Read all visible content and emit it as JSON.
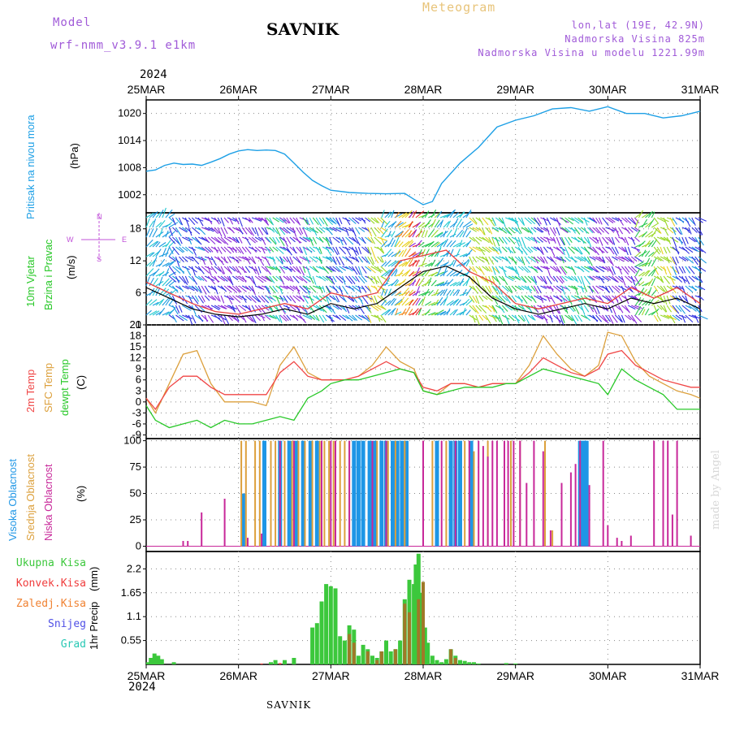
{
  "header": {
    "model_label": "Model",
    "model_name": "wrf-nmm_v3.9.1 e1km",
    "title": "SAVNIK",
    "meteogram_label": "Meteogram",
    "lonlat": "lon,lat (19E, 42.9N)",
    "elevation": "Nadmorska Visina 825m",
    "model_elevation": "Nadmorska Visina u modelu 1221.99m",
    "year_top": "2024",
    "year_bottom": "2024",
    "footer_station": "SAVNIK",
    "watermark": "made by Angel"
  },
  "colors": {
    "pressure": "#1ea0e6",
    "temp2m": "#f04646",
    "sfc_temp": "#dca03c",
    "dewpoint": "#28c828",
    "high_cloud": "#1e96e6",
    "mid_cloud": "#dca03c",
    "low_cloud": "#c8289a",
    "total_precip": "#3cc83c",
    "convective": "#f03c3c",
    "frozen": "#f08232",
    "snow": "#5050e6",
    "graupel": "#28c8b4"
  },
  "chart_data": [
    {
      "type": "line",
      "panel": "pressure",
      "ylabel_lines": [
        "Pritisak na nivou mora"
      ],
      "unit": "(hPa)",
      "x_ticks": [
        "25MAR",
        "26MAR",
        "27MAR",
        "28MAR",
        "29MAR",
        "30MAR",
        "31MAR"
      ],
      "ylim": [
        998,
        1023
      ],
      "yticks": [
        1002,
        1008,
        1014,
        1020
      ],
      "x_days": [
        0,
        0.1,
        0.2,
        0.3,
        0.4,
        0.5,
        0.6,
        0.7,
        0.8,
        0.9,
        1.0,
        1.1,
        1.2,
        1.3,
        1.4,
        1.5,
        1.6,
        1.7,
        1.8,
        1.9,
        2.0,
        2.2,
        2.4,
        2.6,
        2.8,
        2.9,
        3.0,
        3.1,
        3.2,
        3.4,
        3.6,
        3.8,
        4.0,
        4.2,
        4.4,
        4.6,
        4.8,
        5.0,
        5.2,
        5.4,
        5.6,
        5.8,
        6.0
      ],
      "series": [
        {
          "values": [
            1007.2,
            1007.5,
            1008.5,
            1009.0,
            1008.7,
            1008.8,
            1008.5,
            1009.2,
            1010.0,
            1011.0,
            1011.7,
            1012.0,
            1011.8,
            1011.9,
            1011.8,
            1011.0,
            1009.0,
            1007.0,
            1005.2,
            1004.0,
            1003.0,
            1002.5,
            1002.3,
            1002.2,
            1002.3,
            1001.0,
            999.8,
            1000.5,
            1004.5,
            1009.0,
            1012.5,
            1017.0,
            1018.5,
            1019.5,
            1021.0,
            1021.3,
            1020.5,
            1021.5,
            1020.0,
            1020.0,
            1019.0,
            1019.5,
            1020.5
          ]
        }
      ]
    },
    {
      "type": "line",
      "panel": "wind",
      "ylabel_lines": [
        "10m Vjetar",
        "Brzina i Pravac"
      ],
      "unit": "(m/s)",
      "compass": [
        "N",
        "S",
        "W",
        "E"
      ],
      "ylim": [
        0,
        21
      ],
      "yticks": [
        0,
        6,
        12,
        18
      ],
      "x_days": [
        0,
        0.25,
        0.5,
        0.75,
        1.0,
        1.25,
        1.5,
        1.75,
        2.0,
        2.25,
        2.5,
        2.75,
        3.0,
        3.25,
        3.5,
        3.75,
        4.0,
        4.25,
        4.5,
        4.75,
        5.0,
        5.25,
        5.5,
        5.75,
        6.0
      ],
      "series": [
        {
          "name": "speed",
          "values": [
            7,
            5,
            3,
            2,
            1.5,
            2,
            3,
            2,
            4,
            3,
            4,
            7,
            10,
            11,
            9,
            5,
            3,
            2,
            3,
            4,
            3,
            5,
            4,
            5,
            3
          ]
        },
        {
          "name": "gust",
          "values": [
            8,
            6,
            4,
            2.5,
            2,
            3,
            4,
            3,
            6,
            5,
            6,
            12,
            13,
            14,
            10,
            8,
            4,
            3,
            4,
            5,
            4,
            7,
            5,
            7,
            4
          ]
        }
      ]
    },
    {
      "type": "line",
      "panel": "temperature",
      "ylabel_lines": [
        "2m Temp",
        "SFC Temp",
        "dewpt Temp"
      ],
      "unit": "(C)",
      "ylim": [
        -10,
        21
      ],
      "yticks": [
        -9,
        -6,
        -3,
        0,
        3,
        6,
        9,
        12,
        15,
        18,
        21
      ],
      "x_days": [
        0,
        0.1,
        0.25,
        0.4,
        0.55,
        0.7,
        0.85,
        1.0,
        1.15,
        1.3,
        1.45,
        1.6,
        1.75,
        1.9,
        2.0,
        2.15,
        2.3,
        2.45,
        2.6,
        2.75,
        2.9,
        3.0,
        3.15,
        3.3,
        3.45,
        3.6,
        3.75,
        3.9,
        4.0,
        4.15,
        4.3,
        4.45,
        4.6,
        4.75,
        4.9,
        5.0,
        5.15,
        5.3,
        5.45,
        5.6,
        5.75,
        5.9,
        6.0
      ],
      "series": [
        {
          "name": "2m Temp",
          "values": [
            1,
            -2,
            4,
            7,
            7,
            4,
            2,
            2,
            2,
            2,
            8,
            11,
            7,
            6,
            6,
            6,
            7,
            9,
            11,
            9,
            8,
            4,
            3,
            5,
            5,
            4,
            5,
            5,
            5,
            8,
            12,
            10,
            8,
            7,
            9,
            13,
            14,
            10,
            8,
            6,
            5,
            4,
            4
          ]
        },
        {
          "name": "SFC Temp",
          "values": [
            1,
            -3,
            5,
            13,
            14,
            5,
            0,
            0,
            0,
            -1,
            10,
            15,
            8,
            6,
            6,
            6,
            7,
            10,
            15,
            11,
            9,
            3,
            2,
            5,
            5,
            4,
            5,
            5,
            5,
            10,
            18,
            13,
            9,
            7,
            10,
            19,
            18,
            11,
            7,
            5,
            3,
            2,
            1
          ]
        },
        {
          "name": "dewpt Temp",
          "values": [
            -1,
            -5,
            -7,
            -6,
            -5,
            -7,
            -5,
            -6,
            -6,
            -5,
            -4,
            -5,
            1,
            3,
            5,
            6,
            6,
            7,
            8,
            9,
            8,
            3,
            2,
            3,
            4,
            4,
            4,
            5,
            5,
            7,
            9,
            8,
            7,
            6,
            5,
            2,
            9,
            6,
            4,
            2,
            -2,
            -2,
            -2
          ]
        }
      ]
    },
    {
      "type": "bar",
      "panel": "clouds",
      "ylabel_lines": [
        "Visoka Oblacnost",
        "Srednja Oblacnost",
        "Niska Oblacnost"
      ],
      "unit": "(%)",
      "ylim": [
        0,
        100
      ],
      "yticks": [
        0,
        25,
        50,
        75,
        100
      ],
      "series": [
        {
          "name": "Visoka Oblacnost",
          "x_days": [
            0.05,
            1.05,
            1.28,
            1.45,
            1.55,
            1.62,
            1.7,
            1.78,
            1.85,
            2.25,
            2.3,
            2.35,
            2.42,
            2.48,
            2.55,
            2.6,
            2.67,
            2.72,
            2.77,
            2.82,
            3.15,
            3.3,
            3.35,
            3.4,
            3.52,
            4.7,
            4.72,
            4.75,
            4.77
          ],
          "values": [
            0,
            50,
            100,
            100,
            100,
            100,
            100,
            100,
            100,
            100,
            100,
            100,
            100,
            100,
            100,
            100,
            100,
            100,
            100,
            100,
            100,
            100,
            100,
            100,
            100,
            100,
            100,
            100,
            100
          ]
        },
        {
          "name": "Srednja Oblacnost",
          "x_days": [
            1.03,
            1.08,
            1.18,
            1.23,
            1.35,
            1.4,
            1.5,
            1.58,
            1.65,
            1.72,
            1.8,
            1.88,
            1.93,
            1.98,
            2.03,
            2.1,
            2.15,
            2.2,
            2.5,
            2.62,
            2.7,
            2.8,
            3.0,
            3.1,
            3.25,
            3.45,
            3.55,
            3.7,
            3.95,
            4.05,
            4.2,
            4.32,
            4.4
          ],
          "values": [
            100,
            100,
            100,
            100,
            100,
            100,
            100,
            100,
            100,
            100,
            100,
            100,
            100,
            100,
            100,
            100,
            100,
            100,
            100,
            100,
            100,
            100,
            100,
            100,
            100,
            100,
            90,
            100,
            100,
            100,
            5,
            100,
            15
          ]
        },
        {
          "name": "Niska Oblacnost",
          "x_days": [
            0.4,
            0.45,
            0.6,
            0.85,
            1.1,
            1.25,
            1.45,
            1.6,
            1.9,
            2.0,
            2.05,
            2.2,
            2.45,
            2.6,
            3.0,
            3.2,
            3.35,
            3.5,
            3.6,
            3.65,
            3.7,
            3.75,
            3.8,
            3.88,
            3.92,
            3.98,
            4.05,
            4.12,
            4.2,
            4.3,
            4.38,
            4.5,
            4.6,
            4.65,
            4.7,
            4.8,
            4.95,
            5.0,
            5.1,
            5.15,
            5.25,
            5.5,
            5.6,
            5.65,
            5.7,
            5.75,
            5.9,
            6.0
          ],
          "values": [
            5,
            5,
            32,
            45,
            8,
            12,
            100,
            100,
            100,
            100,
            100,
            100,
            100,
            100,
            100,
            100,
            100,
            100,
            100,
            95,
            85,
            100,
            100,
            100,
            100,
            100,
            100,
            60,
            100,
            90,
            15,
            60,
            70,
            78,
            100,
            58,
            100,
            20,
            8,
            5,
            10,
            100,
            100,
            100,
            30,
            100,
            10,
            0
          ]
        }
      ]
    },
    {
      "type": "bar",
      "panel": "precip",
      "ylabel_lines": [
        "1hr Precip"
      ],
      "unit": "(mm)",
      "legend": [
        "Ukupna Kisa",
        "Konvek.Kisa",
        "Zaledj.Kisa",
        "Snijeg",
        "Grad"
      ],
      "ylim": [
        0,
        2.6
      ],
      "yticks": [
        0.55,
        1.1,
        1.65,
        2.2
      ],
      "x_ticks": [
        "25MAR",
        "26MAR",
        "27MAR",
        "28MAR",
        "29MAR",
        "30MAR",
        "31MAR"
      ],
      "series": [
        {
          "name": "Ukupna Kisa",
          "x_days": [
            0.02,
            0.05,
            0.09,
            0.13,
            0.17,
            0.3,
            1.35,
            1.4,
            1.5,
            1.6,
            1.8,
            1.85,
            1.9,
            1.95,
            2.0,
            2.05,
            2.1,
            2.15,
            2.2,
            2.25,
            2.3,
            2.35,
            2.4,
            2.45,
            2.5,
            2.55,
            2.6,
            2.65,
            2.7,
            2.75,
            2.8,
            2.85,
            2.9,
            2.92,
            2.95,
            2.98,
            3.02,
            3.05,
            3.1,
            3.15,
            3.2,
            3.25,
            3.3,
            3.35,
            3.4,
            3.45,
            3.5,
            3.55,
            3.6,
            3.9,
            4.0
          ],
          "values": [
            0.05,
            0.15,
            0.25,
            0.2,
            0.12,
            0.05,
            0.05,
            0.1,
            0.1,
            0.15,
            0.85,
            0.95,
            1.45,
            1.85,
            1.8,
            1.75,
            0.65,
            0.55,
            0.9,
            0.8,
            0.2,
            0.45,
            0.35,
            0.2,
            0.15,
            0.3,
            0.55,
            0.3,
            0.35,
            0.55,
            1.5,
            1.95,
            1.85,
            2.3,
            2.55,
            1.65,
            0.85,
            0.5,
            0.2,
            0.1,
            0.05,
            0.12,
            0.35,
            0.2,
            0.1,
            0.08,
            0.05,
            0.05,
            0.02,
            0.03,
            0.02
          ]
        },
        {
          "name": "Konvek.Kisa",
          "x_days": [
            1.25,
            1.45
          ],
          "values": [
            0.02,
            0.03
          ]
        },
        {
          "name": "Zaledj.Kisa",
          "x_days": [
            2.2,
            2.25,
            2.4,
            2.5,
            2.55,
            2.7,
            2.8,
            2.85,
            2.95,
            3.0,
            3.3,
            3.35
          ],
          "values": [
            0.7,
            0.5,
            0.3,
            0.1,
            0.3,
            0.35,
            1.4,
            1.2,
            1.5,
            1.9,
            0.35,
            0.15
          ]
        },
        {
          "name": "Snijeg",
          "x_days": [],
          "values": []
        },
        {
          "name": "Grad",
          "x_days": [],
          "values": []
        }
      ]
    }
  ]
}
